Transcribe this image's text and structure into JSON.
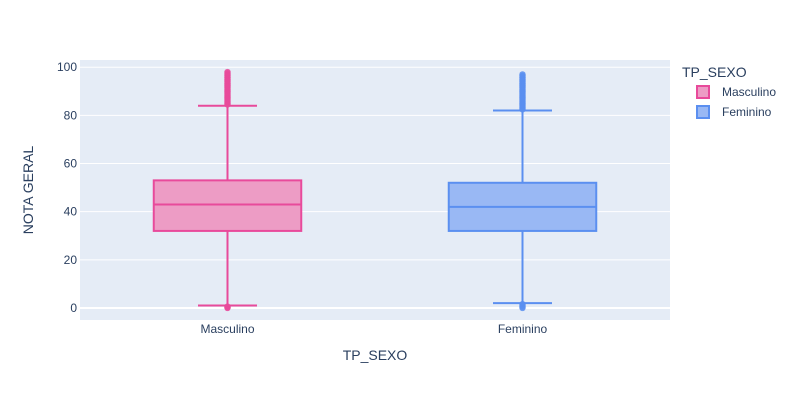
{
  "chart_data": {
    "type": "box",
    "xlabel": "TP_SEXO",
    "ylabel": "NOTA GERAL",
    "ylim": [
      -5,
      103
    ],
    "yticks": [
      0,
      20,
      40,
      60,
      80,
      100
    ],
    "grid": true,
    "legend": {
      "title": "TP_SEXO",
      "placement": "top-right"
    },
    "categories": [
      "Masculino",
      "Feminino"
    ],
    "series": [
      {
        "name": "Masculino",
        "color": "#e84a9b",
        "fill": "#ed9cc5",
        "q1": 32,
        "median": 43,
        "q3": 53,
        "lower_fence": 1,
        "upper_fence": 84,
        "outliers_high_range": [
          84.5,
          98
        ],
        "outliers_low_range": [
          0,
          0.6
        ]
      },
      {
        "name": "Feminino",
        "color": "#5b8ff0",
        "fill": "#99b8f4",
        "q1": 32,
        "median": 42,
        "q3": 52,
        "lower_fence": 2,
        "upper_fence": 82,
        "outliers_high_range": [
          82.5,
          97
        ],
        "outliers_low_range": [
          0,
          1.6
        ]
      }
    ]
  }
}
